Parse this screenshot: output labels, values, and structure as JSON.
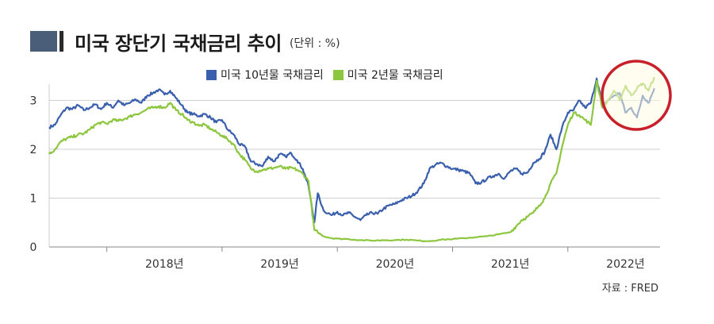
{
  "header": {
    "title": "미국 장단기 국채금리 추이",
    "unit": "(단위 : %)"
  },
  "source": "자료 : FRED",
  "legend": [
    {
      "label": "미국 10년물 국채금리",
      "color": "#3a5fac"
    },
    {
      "label": "미국 2년물 국채금리",
      "color": "#8dc63f"
    }
  ],
  "highlight_color": "#c8202a",
  "chart_data": {
    "type": "line",
    "title": "미국 장단기 국채금리 추이",
    "y_tick_labels": [
      "0",
      "1",
      "2",
      "3"
    ],
    "x_tick_labels": [
      "2018년",
      "2019년",
      "2020년",
      "2021년",
      "2022년"
    ],
    "ylim": [
      0,
      3.3
    ],
    "xlim": [
      2017.5,
      2022.8
    ],
    "grid": true,
    "legend_position": "top",
    "series": [
      {
        "name": "미국 10년물 국채금리",
        "color": "#3a5fac",
        "points": [
          [
            2017.5,
            2.45
          ],
          [
            2017.55,
            2.5
          ],
          [
            2017.6,
            2.7
          ],
          [
            2017.65,
            2.85
          ],
          [
            2017.7,
            2.82
          ],
          [
            2017.75,
            2.9
          ],
          [
            2017.8,
            2.8
          ],
          [
            2017.85,
            2.85
          ],
          [
            2017.9,
            2.92
          ],
          [
            2017.95,
            2.82
          ],
          [
            2018.0,
            2.95
          ],
          [
            2018.05,
            2.85
          ],
          [
            2018.1,
            3.0
          ],
          [
            2018.15,
            2.9
          ],
          [
            2018.2,
            2.95
          ],
          [
            2018.25,
            3.02
          ],
          [
            2018.3,
            2.95
          ],
          [
            2018.35,
            3.1
          ],
          [
            2018.4,
            3.15
          ],
          [
            2018.45,
            3.22
          ],
          [
            2018.5,
            3.12
          ],
          [
            2018.55,
            3.2
          ],
          [
            2018.6,
            3.05
          ],
          [
            2018.65,
            2.9
          ],
          [
            2018.7,
            2.75
          ],
          [
            2018.75,
            2.72
          ],
          [
            2018.8,
            2.68
          ],
          [
            2018.85,
            2.72
          ],
          [
            2018.9,
            2.65
          ],
          [
            2018.95,
            2.55
          ],
          [
            2019.0,
            2.6
          ],
          [
            2019.05,
            2.4
          ],
          [
            2019.1,
            2.3
          ],
          [
            2019.15,
            2.1
          ],
          [
            2019.2,
            2.05
          ],
          [
            2019.25,
            1.75
          ],
          [
            2019.3,
            1.7
          ],
          [
            2019.35,
            1.65
          ],
          [
            2019.4,
            1.85
          ],
          [
            2019.45,
            1.75
          ],
          [
            2019.5,
            1.9
          ],
          [
            2019.55,
            1.85
          ],
          [
            2019.6,
            1.92
          ],
          [
            2019.65,
            1.78
          ],
          [
            2019.7,
            1.6
          ],
          [
            2019.75,
            1.25
          ],
          [
            2019.8,
            0.5
          ],
          [
            2019.83,
            1.1
          ],
          [
            2019.88,
            0.75
          ],
          [
            2019.95,
            0.65
          ],
          [
            2020.0,
            0.72
          ],
          [
            2020.05,
            0.65
          ],
          [
            2020.1,
            0.7
          ],
          [
            2020.15,
            0.62
          ],
          [
            2020.2,
            0.55
          ],
          [
            2020.25,
            0.65
          ],
          [
            2020.3,
            0.7
          ],
          [
            2020.35,
            0.68
          ],
          [
            2020.4,
            0.78
          ],
          [
            2020.45,
            0.85
          ],
          [
            2020.5,
            0.88
          ],
          [
            2020.55,
            0.95
          ],
          [
            2020.6,
            1.0
          ],
          [
            2020.65,
            1.05
          ],
          [
            2020.7,
            1.15
          ],
          [
            2020.75,
            1.3
          ],
          [
            2020.8,
            1.6
          ],
          [
            2020.85,
            1.68
          ],
          [
            2020.9,
            1.72
          ],
          [
            2020.95,
            1.65
          ],
          [
            2021.0,
            1.6
          ],
          [
            2021.05,
            1.58
          ],
          [
            2021.1,
            1.55
          ],
          [
            2021.15,
            1.5
          ],
          [
            2021.2,
            1.3
          ],
          [
            2021.25,
            1.32
          ],
          [
            2021.3,
            1.4
          ],
          [
            2021.35,
            1.45
          ],
          [
            2021.4,
            1.5
          ],
          [
            2021.45,
            1.4
          ],
          [
            2021.5,
            1.55
          ],
          [
            2021.55,
            1.6
          ],
          [
            2021.6,
            1.5
          ],
          [
            2021.65,
            1.52
          ],
          [
            2021.7,
            1.72
          ],
          [
            2021.75,
            1.8
          ],
          [
            2021.8,
            1.95
          ],
          [
            2021.85,
            2.3
          ],
          [
            2021.9,
            2.0
          ],
          [
            2021.95,
            2.45
          ],
          [
            2022.0,
            2.75
          ],
          [
            2022.05,
            2.8
          ],
          [
            2022.1,
            3.0
          ],
          [
            2022.15,
            2.85
          ],
          [
            2022.2,
            2.95
          ],
          [
            2022.25,
            3.45
          ],
          [
            2022.3,
            2.9
          ],
          [
            2022.35,
            3.0
          ],
          [
            2022.4,
            3.1
          ],
          [
            2022.45,
            3.15
          ],
          [
            2022.5,
            2.75
          ],
          [
            2022.55,
            2.85
          ],
          [
            2022.6,
            2.65
          ],
          [
            2022.65,
            3.1
          ],
          [
            2022.7,
            2.95
          ],
          [
            2022.75,
            3.25
          ]
        ]
      },
      {
        "name": "미국 2년물 국채금리",
        "color": "#8dc63f",
        "points": [
          [
            2017.5,
            1.9
          ],
          [
            2017.55,
            2.0
          ],
          [
            2017.6,
            2.15
          ],
          [
            2017.65,
            2.22
          ],
          [
            2017.7,
            2.25
          ],
          [
            2017.75,
            2.3
          ],
          [
            2017.8,
            2.32
          ],
          [
            2017.85,
            2.4
          ],
          [
            2017.9,
            2.5
          ],
          [
            2017.95,
            2.55
          ],
          [
            2018.0,
            2.52
          ],
          [
            2018.05,
            2.6
          ],
          [
            2018.1,
            2.58
          ],
          [
            2018.15,
            2.62
          ],
          [
            2018.2,
            2.67
          ],
          [
            2018.25,
            2.72
          ],
          [
            2018.3,
            2.75
          ],
          [
            2018.35,
            2.82
          ],
          [
            2018.4,
            2.85
          ],
          [
            2018.45,
            2.88
          ],
          [
            2018.5,
            2.85
          ],
          [
            2018.55,
            2.95
          ],
          [
            2018.6,
            2.8
          ],
          [
            2018.65,
            2.72
          ],
          [
            2018.7,
            2.6
          ],
          [
            2018.75,
            2.55
          ],
          [
            2018.8,
            2.48
          ],
          [
            2018.85,
            2.5
          ],
          [
            2018.9,
            2.42
          ],
          [
            2018.95,
            2.35
          ],
          [
            2019.0,
            2.28
          ],
          [
            2019.05,
            2.2
          ],
          [
            2019.1,
            2.1
          ],
          [
            2019.15,
            1.9
          ],
          [
            2019.2,
            1.78
          ],
          [
            2019.25,
            1.6
          ],
          [
            2019.3,
            1.55
          ],
          [
            2019.35,
            1.58
          ],
          [
            2019.4,
            1.6
          ],
          [
            2019.45,
            1.62
          ],
          [
            2019.5,
            1.65
          ],
          [
            2019.55,
            1.6
          ],
          [
            2019.6,
            1.62
          ],
          [
            2019.65,
            1.58
          ],
          [
            2019.7,
            1.5
          ],
          [
            2019.75,
            1.35
          ],
          [
            2019.8,
            0.35
          ],
          [
            2019.83,
            0.3
          ],
          [
            2019.88,
            0.22
          ],
          [
            2019.95,
            0.18
          ],
          [
            2020.0,
            0.17
          ],
          [
            2020.1,
            0.16
          ],
          [
            2020.2,
            0.14
          ],
          [
            2020.3,
            0.13
          ],
          [
            2020.4,
            0.14
          ],
          [
            2020.5,
            0.14
          ],
          [
            2020.6,
            0.15
          ],
          [
            2020.7,
            0.13
          ],
          [
            2020.8,
            0.12
          ],
          [
            2020.9,
            0.15
          ],
          [
            2021.0,
            0.16
          ],
          [
            2021.1,
            0.18
          ],
          [
            2021.2,
            0.2
          ],
          [
            2021.3,
            0.22
          ],
          [
            2021.4,
            0.26
          ],
          [
            2021.5,
            0.3
          ],
          [
            2021.55,
            0.42
          ],
          [
            2021.6,
            0.55
          ],
          [
            2021.65,
            0.62
          ],
          [
            2021.7,
            0.7
          ],
          [
            2021.75,
            0.85
          ],
          [
            2021.8,
            1.0
          ],
          [
            2021.85,
            1.3
          ],
          [
            2021.9,
            1.5
          ],
          [
            2021.95,
            2.05
          ],
          [
            2022.0,
            2.5
          ],
          [
            2022.05,
            2.75
          ],
          [
            2022.1,
            2.7
          ],
          [
            2022.15,
            2.6
          ],
          [
            2022.2,
            2.5
          ],
          [
            2022.25,
            3.4
          ],
          [
            2022.3,
            2.85
          ],
          [
            2022.35,
            3.0
          ],
          [
            2022.4,
            3.2
          ],
          [
            2022.45,
            3.0
          ],
          [
            2022.5,
            3.3
          ],
          [
            2022.55,
            3.1
          ],
          [
            2022.6,
            3.25
          ],
          [
            2022.65,
            3.35
          ],
          [
            2022.7,
            3.2
          ],
          [
            2022.75,
            3.48
          ]
        ]
      }
    ]
  }
}
